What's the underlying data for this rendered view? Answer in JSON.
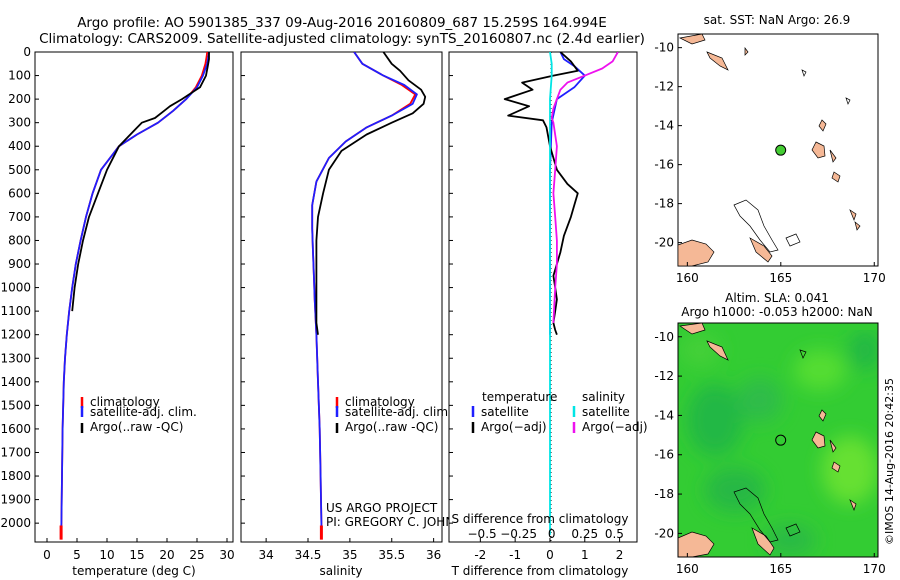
{
  "header": {
    "line1": "Argo profile: AO 5901385_337 09-Aug-2016 20160809_687 15.259S 164.994E",
    "line2": "Climatology: CARS2009. Satellite-adjusted climatology: synTS_20160807.nc (2.4d earlier)"
  },
  "credit": {
    "line1": "US ARGO PROJECT",
    "line2": "PI: GREGORY C. JOHNSON"
  },
  "watermark": "©IMOS 14-Aug-2016 20:42:35",
  "colors": {
    "climatology": "#ff0000",
    "satellite": "#1f1fff",
    "argo": "#000000",
    "sal_satellite": "#00e5e5",
    "sal_argo": "#ee11ee",
    "land": "#f5b896",
    "map_bg": "#ffffff",
    "sla_green": "#33cc33",
    "argo_marker": "#44cc33"
  },
  "chart_data": [
    {
      "id": "temperature",
      "type": "line",
      "xlabel": "temperature (deg C)",
      "xlim": [
        -2,
        31
      ],
      "ylim": [
        0,
        2080
      ],
      "xticks": [
        0,
        5,
        10,
        15,
        20,
        25,
        30
      ],
      "yticks": [
        0,
        100,
        200,
        300,
        400,
        500,
        600,
        700,
        800,
        900,
        1000,
        1100,
        1200,
        1300,
        1400,
        1500,
        1600,
        1700,
        1800,
        1900,
        2000
      ],
      "legend": [
        "climatology",
        "satellite-adj. clim.",
        "Argo(..raw -QC)"
      ],
      "series": [
        {
          "name": "climatology",
          "color": "#ff0000",
          "x": [
            26.7,
            26.6,
            26.4,
            25.8,
            24.8,
            23.2,
            21.0,
            18.5,
            15.0,
            12.0,
            9.0,
            7.6,
            6.5,
            5.6,
            4.8,
            4.2,
            3.7,
            3.3,
            3.0,
            2.8,
            2.6,
            2.5,
            2.4,
            2.35
          ],
          "y": [
            0,
            20,
            50,
            100,
            150,
            200,
            250,
            300,
            350,
            400,
            500,
            600,
            700,
            800,
            900,
            1000,
            1100,
            1200,
            1300,
            1400,
            1600,
            1800,
            2000,
            2050
          ]
        },
        {
          "name": "satellite-adj. clim.",
          "color": "#1f1fff",
          "x": [
            27.0,
            26.9,
            26.7,
            26.0,
            25.0,
            23.2,
            21.0,
            18.5,
            15.0,
            12.0,
            9.0,
            7.6,
            6.5,
            5.6,
            4.8,
            4.2,
            3.7,
            3.3,
            3.0,
            2.8,
            2.6,
            2.5,
            2.4,
            2.35
          ],
          "y": [
            0,
            20,
            50,
            100,
            150,
            200,
            250,
            300,
            350,
            400,
            500,
            600,
            700,
            800,
            900,
            1000,
            1100,
            1200,
            1300,
            1400,
            1600,
            1800,
            2000,
            2050
          ]
        },
        {
          "name": "Argo(..raw -QC)",
          "color": "#000000",
          "x": [
            27.0,
            27.0,
            26.8,
            26.5,
            25.5,
            22.5,
            20.5,
            19.5,
            18.0,
            15.8,
            12.0,
            10.0,
            8.5,
            7.0,
            6.0,
            5.2,
            4.6,
            4.2
          ],
          "y": [
            0,
            30,
            60,
            100,
            150,
            200,
            230,
            250,
            280,
            300,
            400,
            500,
            600,
            700,
            800,
            900,
            1000,
            1100
          ]
        }
      ]
    },
    {
      "id": "salinity",
      "type": "line",
      "xlabel": "salinity",
      "xlim": [
        33.7,
        36.1
      ],
      "ylim": [
        0,
        2080
      ],
      "xticks": [
        34,
        34.5,
        35,
        35.5,
        36
      ],
      "legend": [
        "climatology",
        "satellite-adj. clim.",
        "Argo(..raw -QC)"
      ],
      "series": [
        {
          "name": "climatology",
          "color": "#ff0000",
          "x": [
            35.05,
            35.15,
            35.4,
            35.62,
            35.78,
            35.72,
            35.5,
            35.2,
            34.95,
            34.75,
            34.6,
            34.55,
            34.55,
            34.56,
            34.57,
            34.58,
            34.6,
            34.62,
            34.64,
            34.65,
            34.66,
            34.66
          ],
          "y": [
            0,
            50,
            100,
            140,
            180,
            220,
            270,
            320,
            380,
            450,
            550,
            650,
            750,
            850,
            950,
            1050,
            1200,
            1400,
            1600,
            1800,
            2000,
            2050
          ]
        },
        {
          "name": "satellite-adj. clim.",
          "color": "#1f1fff",
          "x": [
            35.05,
            35.15,
            35.4,
            35.65,
            35.8,
            35.75,
            35.5,
            35.2,
            34.95,
            34.75,
            34.6,
            34.55,
            34.55,
            34.56,
            34.57,
            34.58,
            34.6,
            34.62,
            34.64,
            34.65,
            34.66,
            34.66
          ],
          "y": [
            0,
            50,
            100,
            140,
            180,
            220,
            270,
            320,
            380,
            450,
            550,
            650,
            750,
            850,
            950,
            1050,
            1200,
            1400,
            1600,
            1800,
            2000,
            2050
          ]
        },
        {
          "name": "Argo(..raw -QC)",
          "color": "#000000",
          "x": [
            35.4,
            35.5,
            35.6,
            35.7,
            35.85,
            35.9,
            35.88,
            35.75,
            35.5,
            35.2,
            34.9,
            34.75,
            34.68,
            34.62,
            34.6,
            34.6,
            34.6,
            34.6,
            34.6,
            34.62
          ],
          "y": [
            0,
            50,
            80,
            120,
            160,
            190,
            220,
            260,
            300,
            350,
            420,
            500,
            600,
            700,
            800,
            900,
            1000,
            1100,
            1150,
            1200
          ]
        }
      ]
    },
    {
      "id": "difference",
      "type": "line",
      "xlabel": "T difference from climatology",
      "xlabel_top": "S difference from climatology",
      "xlim": [
        -2.9,
        2.5
      ],
      "ylim": [
        0,
        2080
      ],
      "xticks": [
        -2,
        -1,
        0,
        1,
        2
      ],
      "s_ticks": [
        {
          "label": "−0.5",
          "x": -1.95
        },
        {
          "label": "−0.25",
          "x": -0.9
        },
        {
          "label": "0",
          "x": 0.05
        },
        {
          "label": "0.25",
          "x": 1.0
        },
        {
          "label": "0.5",
          "x": 1.85
        }
      ],
      "legend_left": [
        "temperature",
        "satellite",
        "Argo(−adj)"
      ],
      "legend_right": [
        "salinity",
        "satellite",
        "Argo(−adj)"
      ],
      "series": [
        {
          "name": "T satellite",
          "color": "#1f1fff",
          "x": [
            0.3,
            0.4,
            0.7,
            1.0,
            0.7,
            0.2,
            0.05,
            0.0,
            0.0,
            0.0
          ],
          "y": [
            0,
            30,
            60,
            100,
            150,
            200,
            300,
            500,
            800,
            1200
          ]
        },
        {
          "name": "T Argo(-adj)",
          "color": "#000000",
          "x": [
            0.3,
            0.6,
            0.8,
            0.1,
            -0.8,
            -0.5,
            -1.3,
            -0.6,
            -1.2,
            -0.2,
            -0.1,
            0.0,
            0.2,
            0.5,
            0.8,
            0.7,
            0.6,
            0.4,
            0.3,
            0.2,
            0.1,
            0.15,
            0.2,
            0.15,
            0.1,
            0.15,
            0.2
          ],
          "y": [
            0,
            40,
            80,
            100,
            130,
            160,
            200,
            230,
            270,
            290,
            320,
            400,
            500,
            560,
            600,
            650,
            700,
            780,
            850,
            900,
            950,
            1000,
            1050,
            1100,
            1150,
            1180,
            1200
          ]
        },
        {
          "name": "S satellite",
          "color": "#00e5e5",
          "x": [
            0.0,
            0.05,
            0.05,
            0.0,
            0.0,
            0.0,
            0.0,
            0.0
          ],
          "y": [
            0,
            50,
            100,
            200,
            400,
            800,
            1500,
            2050
          ]
        },
        {
          "name": "S Argo(-adj)",
          "color": "#ee11ee",
          "x": [
            1.95,
            1.8,
            1.5,
            1.0,
            0.5,
            0.3,
            0.2,
            0.1,
            0.05,
            0.1,
            0.2,
            0.15,
            0.1,
            0.15,
            0.2,
            0.2,
            0.15,
            0.1
          ],
          "y": [
            0,
            40,
            70,
            100,
            130,
            160,
            200,
            240,
            280,
            300,
            400,
            500,
            600,
            700,
            800,
            900,
            1000,
            1150
          ]
        }
      ]
    },
    {
      "id": "map-sst",
      "type": "scatter",
      "title": "sat. SST: NaN Argo: 26.9",
      "xlim": [
        159.5,
        170.2
      ],
      "ylim": [
        -21.2,
        -9.3
      ],
      "xticks": [
        160,
        165,
        170
      ],
      "yticks": [
        -10,
        -12,
        -14,
        -16,
        -18,
        -20
      ],
      "argo_position": {
        "lon": 164.994,
        "lat": -15.259
      }
    },
    {
      "id": "map-sla",
      "type": "heatmap",
      "title_line1": "Altim. SLA: 0.041",
      "title_line2": "Argo h1000: -0.053 h2000: NaN",
      "xlim": [
        159.5,
        170.2
      ],
      "ylim": [
        -21.2,
        -9.3
      ],
      "xticks": [
        160,
        165,
        170
      ],
      "yticks": [
        -10,
        -12,
        -14,
        -16,
        -18,
        -20
      ],
      "argo_position": {
        "lon": 164.994,
        "lat": -15.259
      }
    }
  ]
}
